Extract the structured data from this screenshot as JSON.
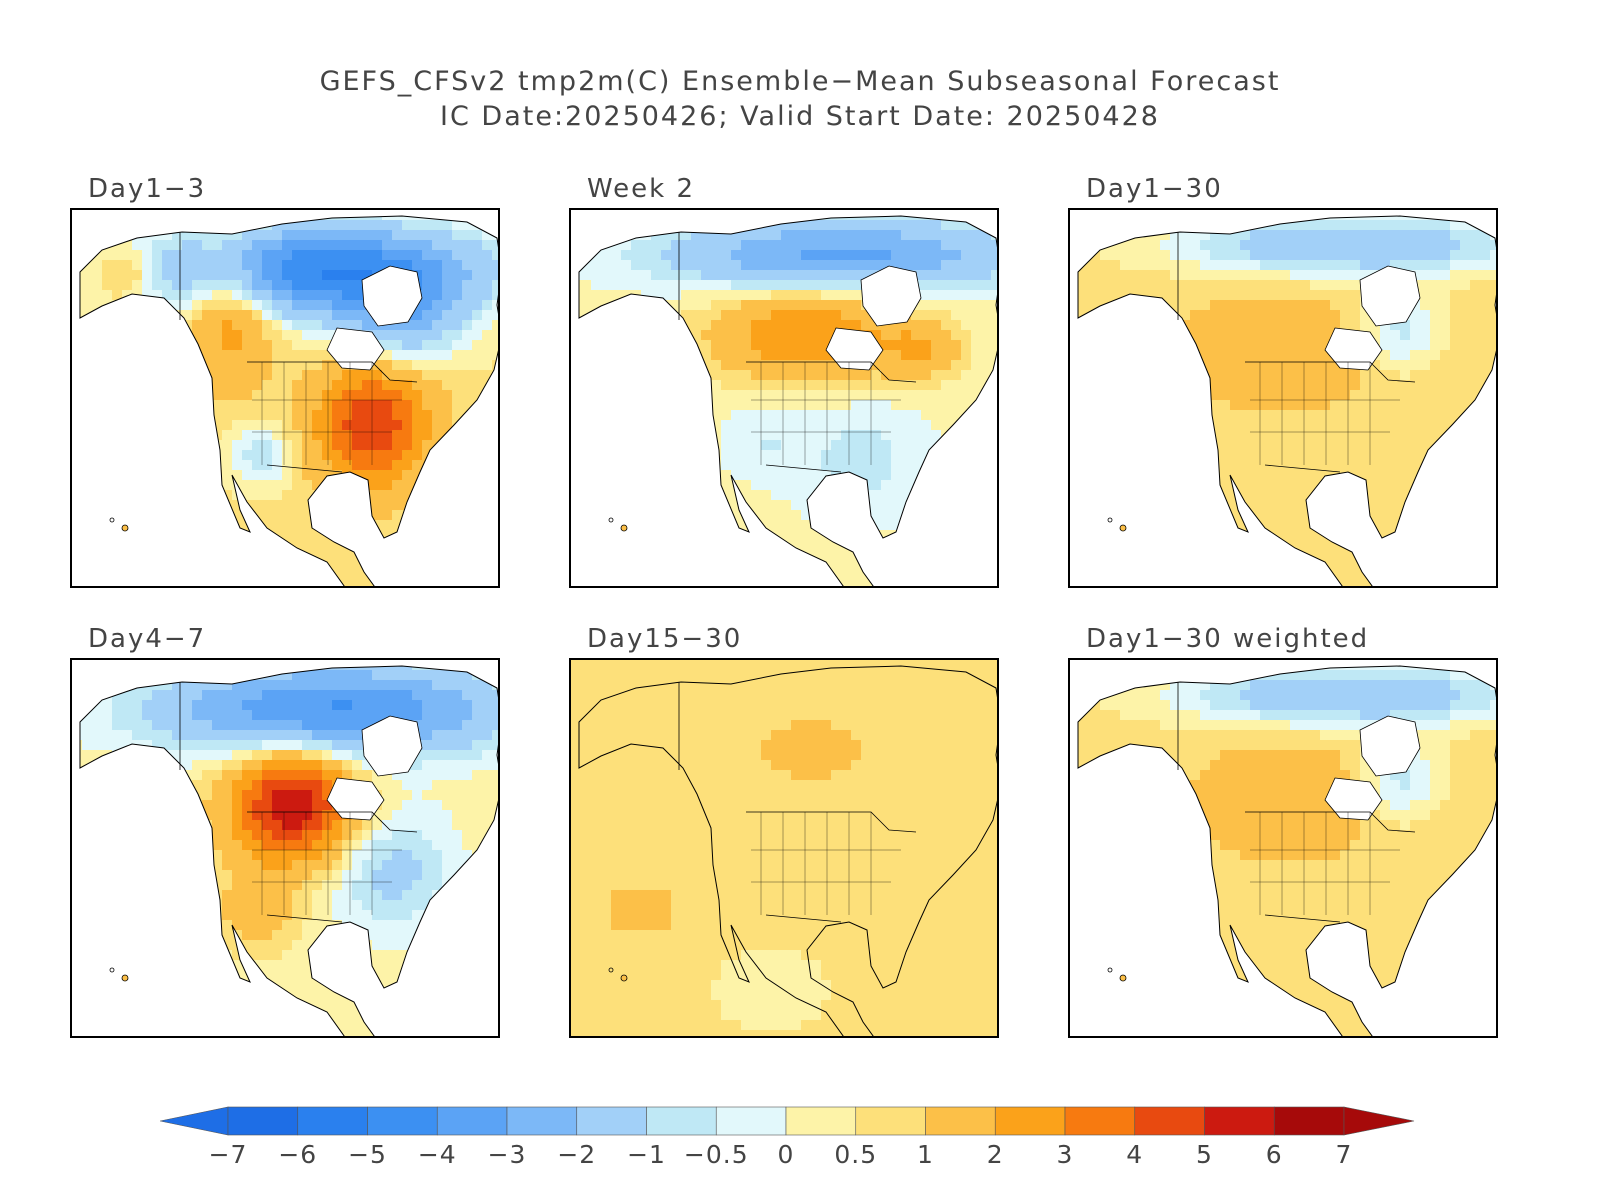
{
  "title": {
    "line1": "GEFS_CFSv2 tmp2m(C) Ensemble−Mean Subseasonal Forecast",
    "line2": "IC Date:20250426; Valid Start Date: 20250428"
  },
  "colors": {
    "bins": [
      "#1e6ee6",
      "#2a80ee",
      "#3c90f2",
      "#5ba3f5",
      "#7cb8f7",
      "#a2d0f8",
      "#bfe8f5",
      "#e2f8fb",
      "#fdf3a8",
      "#fde07a",
      "#fcc048",
      "#fba21a",
      "#f77a10",
      "#e84a10",
      "#cc1a10",
      "#a60a0a"
    ]
  },
  "panels": [
    {
      "label": "Day1−3",
      "pattern": "d13"
    },
    {
      "label": "Week 2",
      "pattern": "w2"
    },
    {
      "label": "Day1−30",
      "pattern": "d130"
    },
    {
      "label": "Day4−7",
      "pattern": "d47"
    },
    {
      "label": "Day15−30",
      "pattern": "d1530"
    },
    {
      "label": "Day1−30 weighted",
      "pattern": "d130w"
    }
  ],
  "colorbar": {
    "labels": [
      "−7",
      "−6",
      "−5",
      "−4",
      "−3",
      "−2",
      "−1",
      "−0.5",
      "0",
      "0.5",
      "1",
      "2",
      "3",
      "4",
      "5",
      "6",
      "7"
    ]
  }
}
